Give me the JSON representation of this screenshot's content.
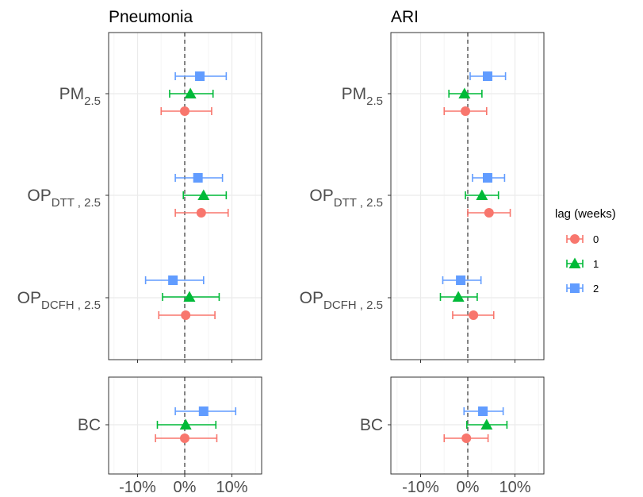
{
  "chart_data": [
    {
      "type": "scatter",
      "title": "Pneumonia",
      "xlim": [
        -16,
        16
      ],
      "xticks": [
        "-10%",
        "0%",
        "10%"
      ],
      "xtick_values": [
        -10,
        0,
        10
      ],
      "categories": [
        "PM2.5",
        "OPDTT, 2.5",
        "OPDCFH, 2.5",
        "BC"
      ],
      "category_labels": [
        {
          "main": "PM",
          "sub": "2.5"
        },
        {
          "main": "OP",
          "sub": "DTT , 2.5"
        },
        {
          "main": "OP",
          "sub": "DCFH , 2.5"
        },
        {
          "main": "BC",
          "sub": ""
        }
      ],
      "series": [
        {
          "name": "0",
          "estimate": [
            0.0,
            3.5,
            0.2,
            0.0
          ],
          "lower": [
            -5.0,
            -2.0,
            -5.5,
            -6.2
          ],
          "upper": [
            5.7,
            9.2,
            6.4,
            6.8
          ]
        },
        {
          "name": "1",
          "estimate": [
            1.2,
            4.0,
            1.0,
            0.2
          ],
          "lower": [
            -3.2,
            -0.3,
            -4.7,
            -5.8
          ],
          "upper": [
            6.0,
            8.8,
            7.3,
            6.6
          ]
        },
        {
          "name": "2",
          "estimate": [
            3.2,
            2.8,
            -2.5,
            4.0
          ],
          "lower": [
            -2.0,
            -2.0,
            -8.3,
            -2.0
          ],
          "upper": [
            8.8,
            8.0,
            4.0,
            10.8
          ]
        }
      ]
    },
    {
      "type": "scatter",
      "title": "ARI",
      "xlim": [
        -19,
        16
      ],
      "xticks": [
        "-10%",
        "0%",
        "10%"
      ],
      "xtick_values": [
        -10,
        0,
        10
      ],
      "categories": [
        "PM2.5",
        "OPDTT, 2.5",
        "OPDCFH, 2.5",
        "BC"
      ],
      "category_labels": [
        {
          "main": "PM",
          "sub": "2.5"
        },
        {
          "main": "OP",
          "sub": "DTT , 2.5"
        },
        {
          "main": "OP",
          "sub": "DCFH , 2.5"
        },
        {
          "main": "BC",
          "sub": ""
        }
      ],
      "series": [
        {
          "name": "0",
          "estimate": [
            -0.5,
            4.5,
            1.2,
            -0.3
          ],
          "lower": [
            -5.0,
            0.0,
            -3.2,
            -5.0
          ],
          "upper": [
            4.0,
            9.0,
            5.5,
            4.3
          ]
        },
        {
          "name": "1",
          "estimate": [
            -0.7,
            3.0,
            -2.0,
            4.0
          ],
          "lower": [
            -4.0,
            -0.5,
            -5.8,
            -0.2
          ],
          "upper": [
            3.0,
            6.5,
            2.0,
            8.3
          ]
        },
        {
          "name": "2",
          "estimate": [
            4.2,
            4.2,
            -1.5,
            3.2
          ],
          "lower": [
            0.5,
            1.0,
            -5.3,
            -0.8
          ],
          "upper": [
            8.0,
            7.8,
            2.8,
            7.5
          ]
        }
      ]
    }
  ],
  "legend": {
    "title": "lag (weeks)",
    "entries": [
      {
        "label": "0",
        "color": "#F8766D",
        "shape": "circle"
      },
      {
        "label": "1",
        "color": "#00BA38",
        "shape": "triangle"
      },
      {
        "label": "2",
        "color": "#619CFF",
        "shape": "square"
      }
    ],
    "placement": "right"
  },
  "style": {
    "grid": true,
    "reference_line": 0,
    "reference_line_style": "dashed",
    "ref_color": "#666666",
    "grid_major_color": "#EBEBEB",
    "grid_minor_color": "#F5F5F5",
    "panel_border_color": "#333333"
  }
}
